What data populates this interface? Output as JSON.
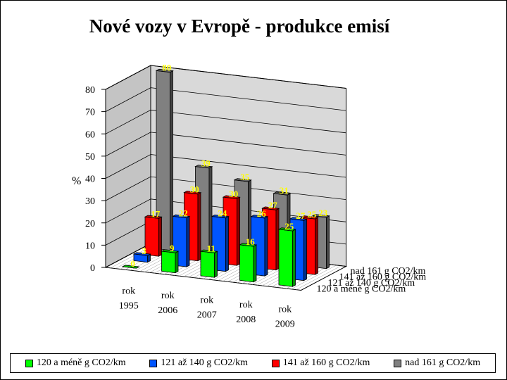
{
  "chart_data": {
    "type": "bar",
    "subtype": "3d-clustered-depth",
    "title": "Nové vozy v Evropě - produkce emisí",
    "ylabel": "%",
    "ylim": [
      0,
      80
    ],
    "yticks": [
      "0",
      "10",
      "20",
      "30",
      "40",
      "50",
      "60",
      "70",
      "80"
    ],
    "grid": true,
    "legend_position": "bottom",
    "categories": [
      [
        "rok",
        "1995"
      ],
      [
        "rok",
        "2006"
      ],
      [
        "rok",
        "2007"
      ],
      [
        "rok",
        "2008"
      ],
      [
        "rok",
        "2009"
      ]
    ],
    "series": [
      {
        "name": "120 a méně g CO2/km",
        "color": "#00ff00",
        "values": [
          0,
          9,
          11,
          16,
          25
        ]
      },
      {
        "name": "121 až 140 g CO2/km",
        "color": "#0055ff",
        "values": [
          3,
          22,
          24,
          26,
          27
        ]
      },
      {
        "name": "141 až 160 g CO2/km",
        "color": "#ff0000",
        "values": [
          17,
          30,
          30,
          27,
          25
        ]
      },
      {
        "name": "nad 161 g CO2/km",
        "color": "#808080",
        "values": [
          80,
          39,
          35,
          31,
          23
        ]
      }
    ],
    "depth_axis_labels": [
      "120 a méně g CO2/km",
      "121 až 140 g CO2/km",
      "141 až 160 g CO2/km",
      "nad 161 g CO2/km"
    ],
    "data_label_color": "#ffff00"
  }
}
